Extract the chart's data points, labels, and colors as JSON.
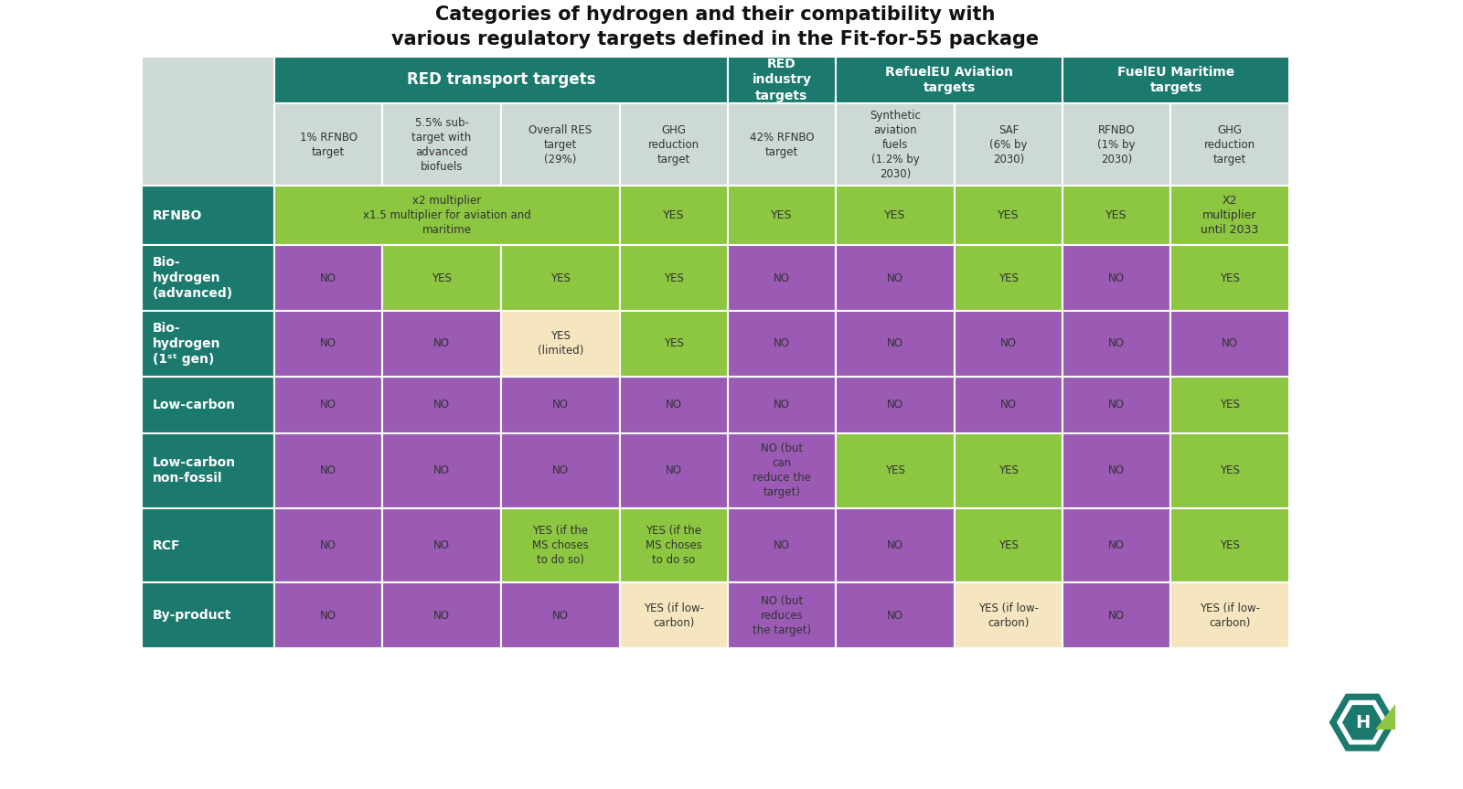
{
  "title": "Categories of hydrogen and their compatibility with\nvarious regulatory targets defined in the Fit-for-55 package",
  "bg_color": "#ffffff",
  "dark_green": "#1b7a6d",
  "light_gray": "#cdd9d5",
  "cell_green": "#8dc641",
  "cell_purple": "#9b5bb5",
  "cell_cream": "#f5e6c0",
  "text_white": "#ffffff",
  "text_dark": "#333333",
  "col_group_labels": [
    "RED transport targets",
    "RED\nindustry\ntargets",
    "RefuelEU Aviation\ntargets",
    "FuelEU Maritime\ntargets"
  ],
  "col_group_spans": [
    4,
    1,
    2,
    2
  ],
  "sub_headers": [
    "1% RFNBO\ntarget",
    "5.5% sub-\ntarget with\nadvanced\nbiofuels",
    "Overall RES\ntarget\n(29%)",
    "GHG\nreduction\ntarget",
    "42% RFNBO\ntarget",
    "Synthetic\naviation\nfuels\n(1.2% by\n2030)",
    "SAF\n(6% by\n2030)",
    "RFNBO\n(1% by\n2030)",
    "GHG\nreduction\ntarget"
  ],
  "row_labels": [
    "RFNBO",
    "Bio-\nhydrogen\n(advanced)",
    "Bio-\nhydrogen\n(1ˢᵗ gen)",
    "Low-carbon",
    "Low-carbon\nnon-fossil",
    "RCF",
    "By-product"
  ],
  "cells": [
    [
      "x2 multiplier\nx1.5 multiplier for aviation and\nmaritime",
      "",
      "",
      "YES",
      "YES",
      "YES",
      "YES",
      "YES",
      "X2\nmultiplier\nuntil 2033"
    ],
    [
      "NO",
      "YES",
      "YES",
      "YES",
      "NO",
      "NO",
      "YES",
      "NO",
      "YES"
    ],
    [
      "NO",
      "NO",
      "YES\n(limited)",
      "YES",
      "NO",
      "NO",
      "NO",
      "NO",
      "NO"
    ],
    [
      "NO",
      "NO",
      "NO",
      "NO",
      "NO",
      "NO",
      "NO",
      "NO",
      "YES"
    ],
    [
      "NO",
      "NO",
      "NO",
      "NO",
      "NO (but\ncan\nreduce the\ntarget)",
      "YES",
      "YES",
      "NO",
      "YES"
    ],
    [
      "NO",
      "NO",
      "YES (if the\nMS choses\nto do so)",
      "YES (if the\nMS choses\nto do so",
      "NO",
      "NO",
      "YES",
      "NO",
      "YES"
    ],
    [
      "NO",
      "NO",
      "NO",
      "YES (if low-\ncarbon)",
      "NO (but\nreduces\nthe target)",
      "NO",
      "YES (if low-\ncarbon)",
      "NO",
      "YES (if low-\ncarbon)"
    ]
  ],
  "cell_colors": [
    [
      "#8dc641",
      "#8dc641",
      "#8dc641",
      "#8dc641",
      "#8dc641",
      "#8dc641",
      "#8dc641",
      "#8dc641",
      "#8dc641"
    ],
    [
      "#9b5bb5",
      "#8dc641",
      "#8dc641",
      "#8dc641",
      "#9b5bb5",
      "#9b5bb5",
      "#8dc641",
      "#9b5bb5",
      "#8dc641"
    ],
    [
      "#9b5bb5",
      "#9b5bb5",
      "#f5e6c0",
      "#8dc641",
      "#9b5bb5",
      "#9b5bb5",
      "#9b5bb5",
      "#9b5bb5",
      "#9b5bb5"
    ],
    [
      "#9b5bb5",
      "#9b5bb5",
      "#9b5bb5",
      "#9b5bb5",
      "#9b5bb5",
      "#9b5bb5",
      "#9b5bb5",
      "#9b5bb5",
      "#8dc641"
    ],
    [
      "#9b5bb5",
      "#9b5bb5",
      "#9b5bb5",
      "#9b5bb5",
      "#9b5bb5",
      "#8dc641",
      "#8dc641",
      "#9b5bb5",
      "#8dc641"
    ],
    [
      "#9b5bb5",
      "#9b5bb5",
      "#8dc641",
      "#8dc641",
      "#9b5bb5",
      "#9b5bb5",
      "#8dc641",
      "#9b5bb5",
      "#8dc641"
    ],
    [
      "#9b5bb5",
      "#9b5bb5",
      "#9b5bb5",
      "#f5e6c0",
      "#9b5bb5",
      "#9b5bb5",
      "#f5e6c0",
      "#9b5bb5",
      "#f5e6c0"
    ]
  ]
}
